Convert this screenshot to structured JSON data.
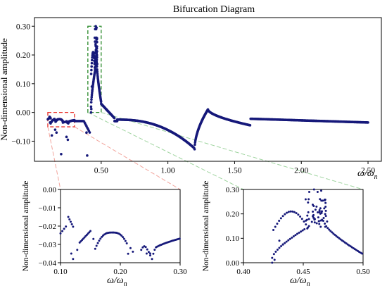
{
  "chart_data": [
    {
      "id": "main",
      "type": "scatter",
      "title": "Bifurcation Diagram",
      "xlabel_base": "ω/ω",
      "xlabel_sub": "n",
      "ylabel": "Non-dimensional amplitude",
      "xlim": [
        0.0,
        2.6
      ],
      "ylim": [
        -0.17,
        0.33
      ],
      "xticks": [
        0.5,
        1.0,
        1.5,
        2.0,
        2.5
      ],
      "xtick_labels": [
        "0.50",
        "1.00",
        "1.50",
        "2.00",
        "2.50"
      ],
      "yticks": [
        -0.1,
        0.0,
        0.1,
        0.2,
        0.3
      ],
      "ytick_labels": [
        "−0.10",
        "0.00",
        "0.10",
        "0.20",
        "0.30"
      ],
      "highlight_boxes": [
        {
          "color": "#e8312a",
          "x": [
            0.1,
            0.3
          ],
          "y": [
            -0.05,
            0.0
          ]
        },
        {
          "color": "#2a8a2a",
          "x": [
            0.4,
            0.5
          ],
          "y": [
            0.0,
            0.3
          ]
        }
      ],
      "point_color": "#16197a"
    },
    {
      "id": "zoom-left",
      "type": "scatter",
      "xlabel_base": "ω/ω",
      "xlabel_sub": "n",
      "ylabel": "Non-dimensional amplitude",
      "xlim": [
        0.1,
        0.3
      ],
      "ylim": [
        -0.04,
        0.0
      ],
      "xticks": [
        0.1,
        0.2,
        0.3
      ],
      "xtick_labels": [
        "0.10",
        "0.20",
        "0.30"
      ],
      "yticks": [
        -0.04,
        -0.03,
        -0.02,
        -0.01,
        0.0
      ],
      "ytick_labels": [
        "−0.04",
        "−0.03",
        "−0.02",
        "−0.01",
        "0.00"
      ],
      "point_color": "#16197a"
    },
    {
      "id": "zoom-right",
      "type": "scatter",
      "xlabel_base": "ω/ω",
      "xlabel_sub": "n",
      "ylabel": "Non-dimensional amplitude",
      "xlim": [
        0.4,
        0.5
      ],
      "ylim": [
        0.0,
        0.3
      ],
      "xticks": [
        0.4,
        0.45,
        0.5
      ],
      "xtick_labels": [
        "0.40",
        "0.45",
        "0.50"
      ],
      "yticks": [
        0.0,
        0.1,
        0.2,
        0.3
      ],
      "ytick_labels": [
        "0.00",
        "0.10",
        "0.20",
        "0.30"
      ],
      "point_color": "#16197a"
    }
  ],
  "connector_colors": {
    "left": "#f2a49c",
    "right": "#9fd49f"
  }
}
